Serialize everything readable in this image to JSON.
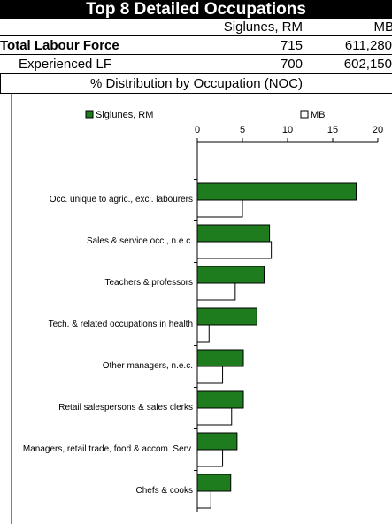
{
  "header": {
    "title": "Top 8 Detailed Occupations"
  },
  "table": {
    "columns": [
      "Siglunes, RM",
      "MB"
    ],
    "rows": [
      [
        "Total Labour Force",
        "715",
        "611,280"
      ],
      [
        "Experienced LF",
        "700",
        "602,150"
      ]
    ]
  },
  "section_title": "% Distribution by Occupation (NOC)",
  "chart_data": {
    "type": "bar",
    "orientation": "horizontal",
    "categories": [
      "Occ. unique to agric., excl. labourers",
      "Sales & service occ., n.e.c.",
      "Teachers & professors",
      "Tech. & related occupations in health",
      "Other managers, n.e.c.",
      "Retail salespersons & sales clerks",
      "Managers, retail trade, food & accom. Serv.",
      "Chefs & cooks"
    ],
    "series": [
      {
        "name": "Siglunes, RM",
        "color": "#1e7b1e",
        "values": [
          17.6,
          8.0,
          7.4,
          6.6,
          5.1,
          5.1,
          4.4,
          3.7
        ]
      },
      {
        "name": "MB",
        "color": "#ffffff",
        "values": [
          5.0,
          8.2,
          4.2,
          1.3,
          2.8,
          3.8,
          2.8,
          1.5
        ]
      }
    ],
    "xlim": [
      0,
      20
    ],
    "xticks": [
      0,
      5,
      10,
      15,
      20
    ]
  }
}
